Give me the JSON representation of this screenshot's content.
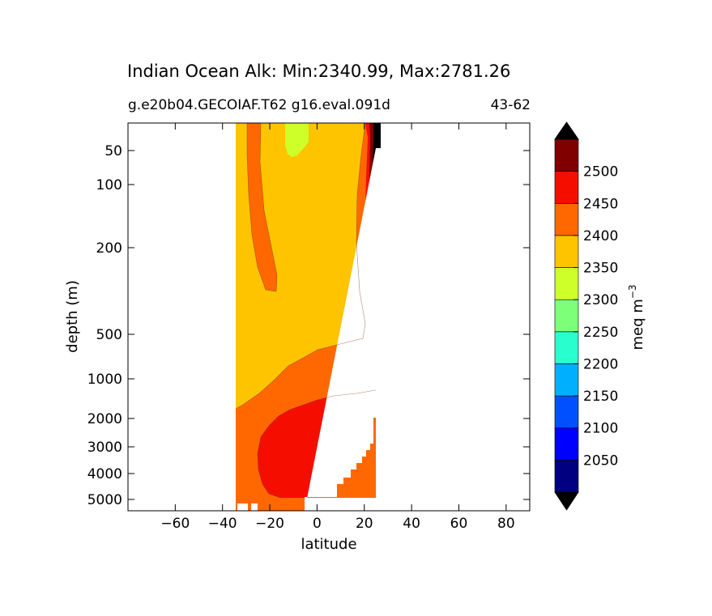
{
  "chart_data": {
    "type": "heatmap",
    "subtype": "filled-contour",
    "title": "Indian Ocean Alk: Min:2340.99, Max:2781.26",
    "subtitle_left": "g.e20b04.GECOIAF.T62 g16.eval.091d",
    "subtitle_right": "43-62",
    "xlabel": "latitude",
    "ylabel": "depth (m)",
    "xlim": [
      -80,
      90
    ],
    "x_ticks": [
      -60,
      -40,
      -20,
      0,
      20,
      40,
      60,
      80
    ],
    "x_tick_labels": [
      "−60",
      "−40",
      "−20",
      "0",
      "20",
      "40",
      "60",
      "80"
    ],
    "y_scale": "nonlinear (depth, increasing downward)",
    "y_ticks": [
      50,
      100,
      200,
      500,
      1000,
      2000,
      3000,
      4000,
      5000
    ],
    "y_tick_labels": [
      "50",
      "100",
      "200",
      "500",
      "1000",
      "2000",
      "3000",
      "4000",
      "5000"
    ],
    "data_extent": {
      "lat_min": -34,
      "lat_max": 25
    },
    "colorbar": {
      "label": "meq m",
      "label_superscript": "−3",
      "tick_labels": [
        "2050",
        "2100",
        "2150",
        "2200",
        "2250",
        "2300",
        "2350",
        "2400",
        "2450",
        "2500"
      ],
      "levels": [
        2000,
        2050,
        2100,
        2150,
        2200,
        2250,
        2300,
        2350,
        2400,
        2450,
        2500,
        2550
      ],
      "colors": [
        "#000080",
        "#0000ff",
        "#0050ff",
        "#00b0ff",
        "#29ffce",
        "#7dff7a",
        "#ceff29",
        "#ffc400",
        "#ff6800",
        "#f50e00",
        "#800000"
      ],
      "extend": "both",
      "under_color": "#000000",
      "over_color": "#000000"
    },
    "regions": [
      {
        "level_range": [
          2350,
          2400
        ],
        "color": "#ffc400",
        "description": "upper waters 0-1000 m"
      },
      {
        "level_range": [
          2400,
          2450
        ],
        "color": "#ff6800",
        "description": "southern surface tongue and intermediate/bottom envelope"
      },
      {
        "level_range": [
          2300,
          2350
        ],
        "color": "#ceff29",
        "description": "small surface patch near 10S"
      },
      {
        "level_range": [
          2450,
          2500
        ],
        "color": "#f50e00",
        "description": "deep water 1500-5000 m and northern boundary"
      },
      {
        "level_range": [
          2500,
          2550
        ],
        "color": "#800000",
        "description": "northern boundary near 25N"
      },
      {
        "level_range": [
          2550,
          9999
        ],
        "color": "#000000",
        "description": "northern boundary surface near 25N"
      }
    ]
  }
}
